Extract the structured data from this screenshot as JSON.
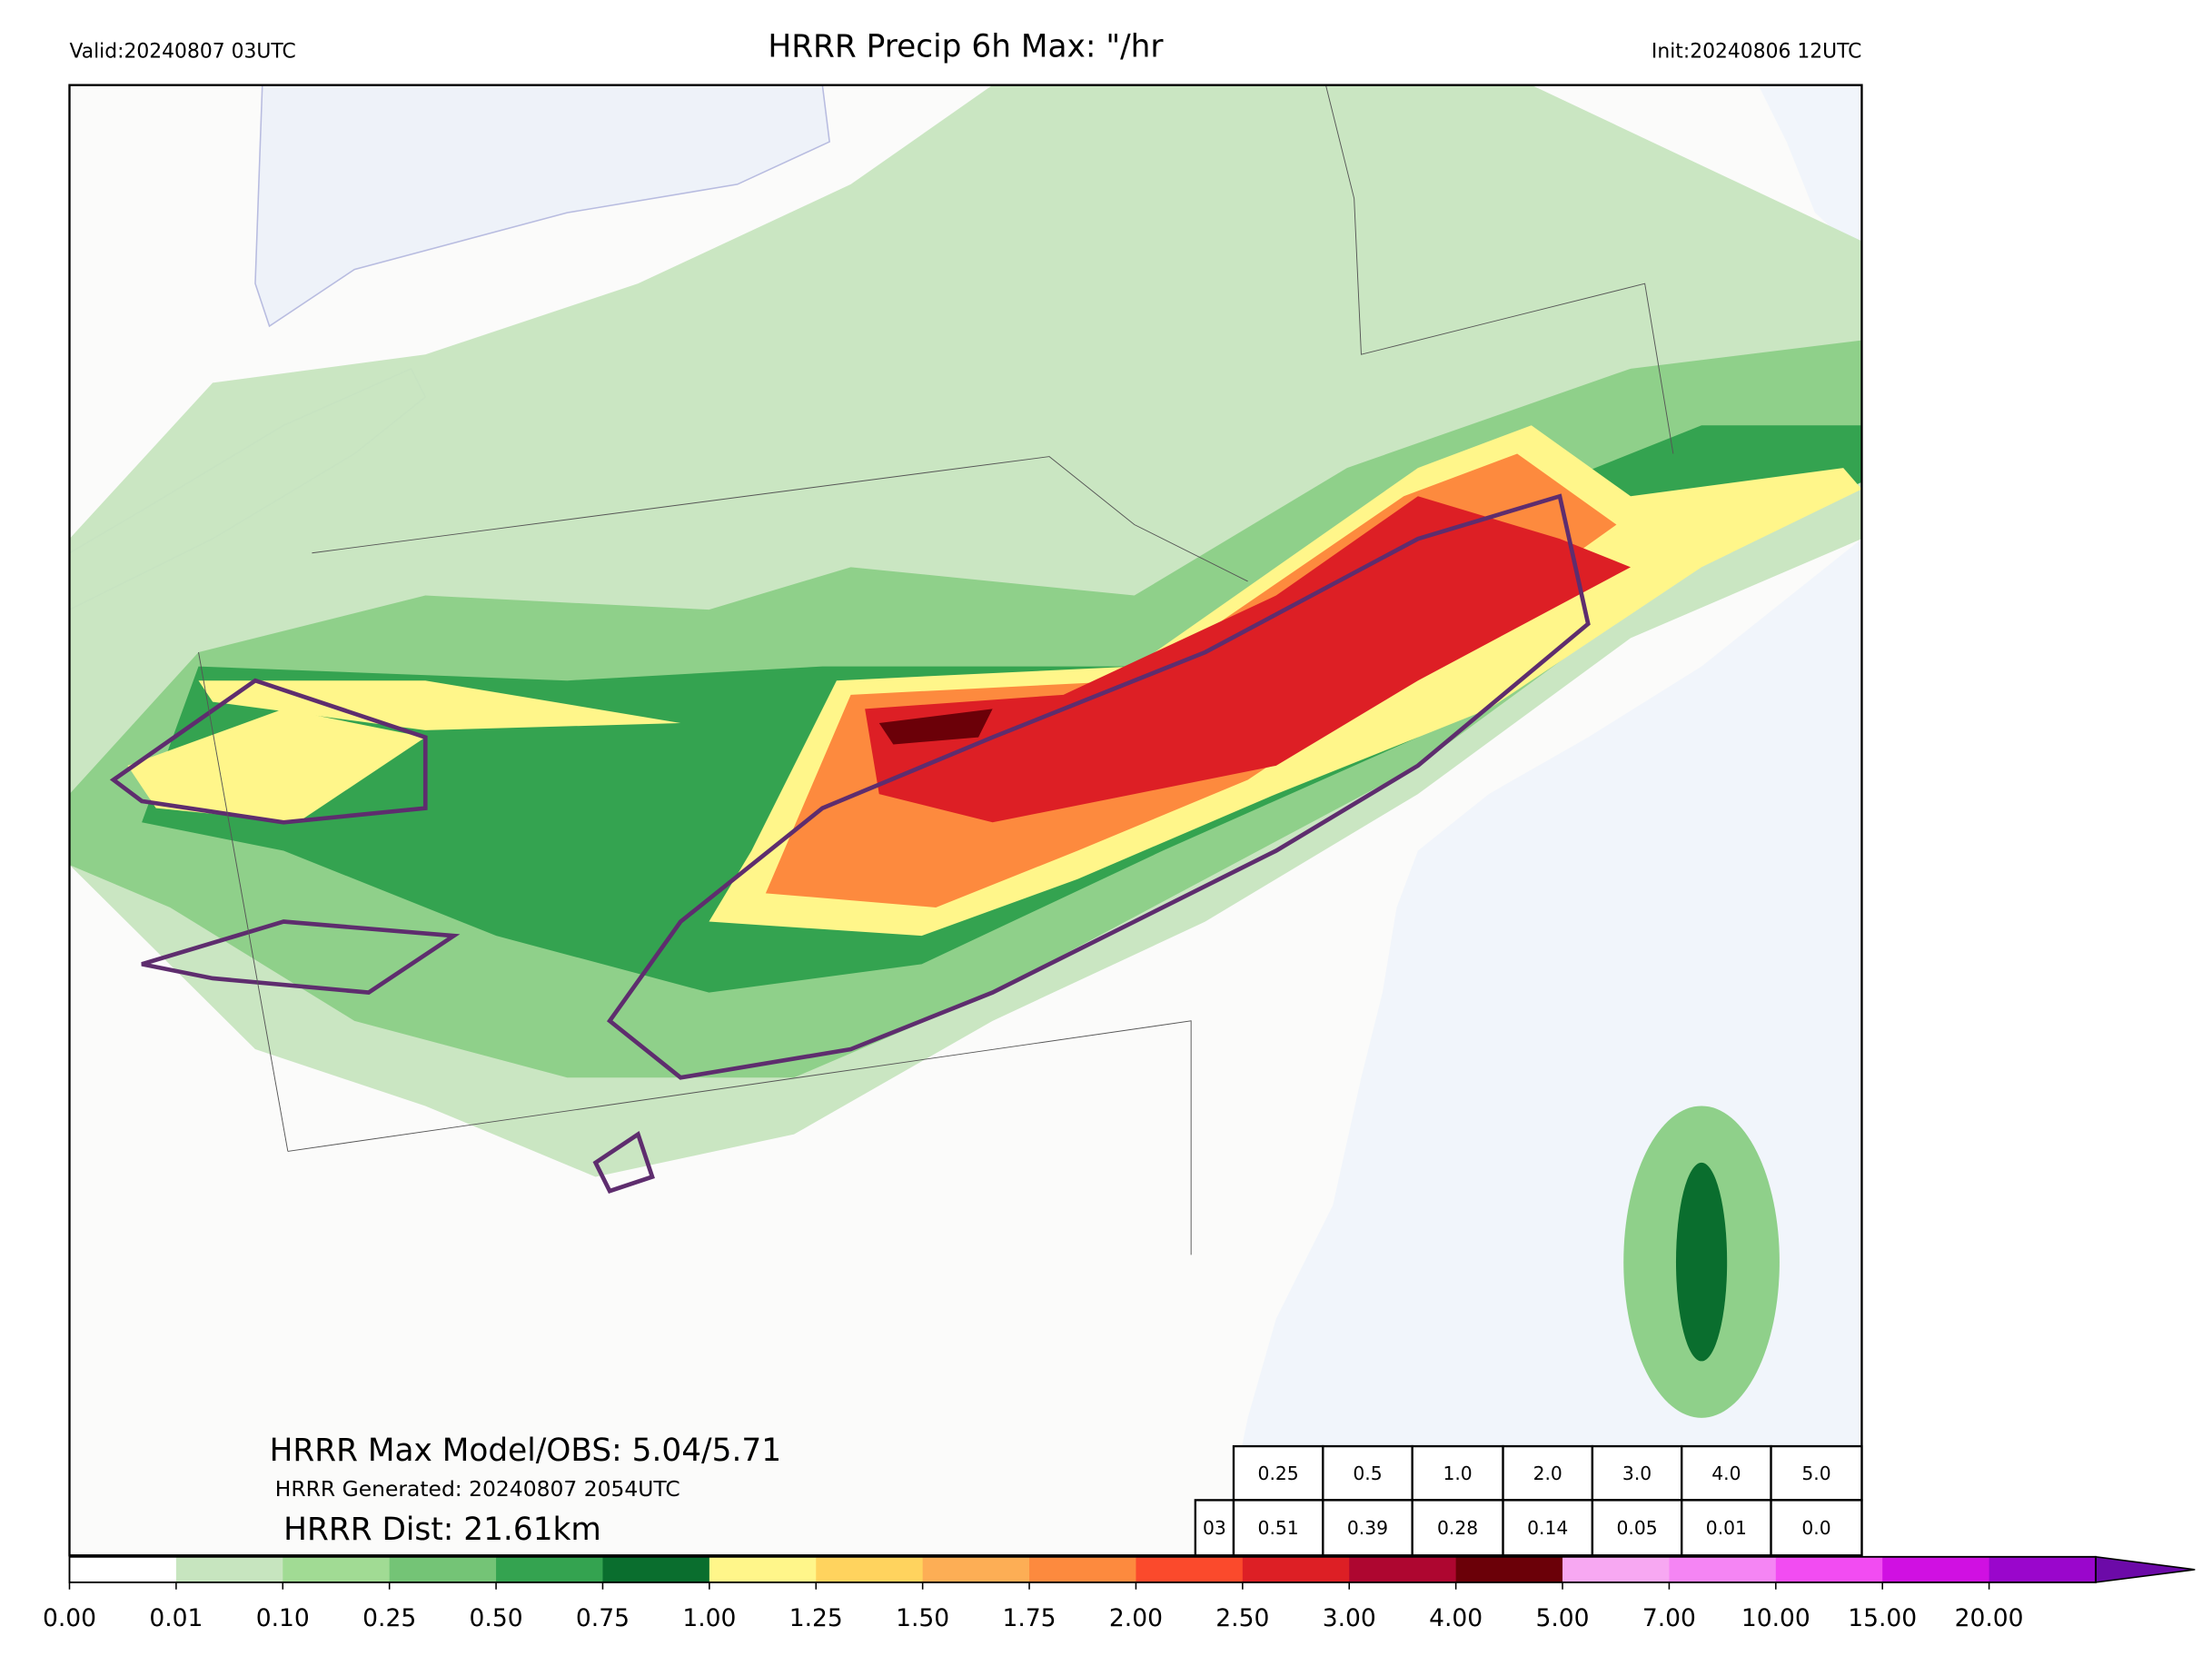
{
  "header": {
    "valid": "Valid:20240807 03UTC",
    "title": "HRRR Precip 6h Max: \"/hr",
    "init": "Init:20240806 12UTC"
  },
  "stats": {
    "max": "HRRR Max Model/OBS: 5.04/5.71",
    "generated": "HRRR Generated: 20240807 2054UTC",
    "dist": "HRRR Dist: 21.61km"
  },
  "table": {
    "rows": [
      [
        "0.25",
        "0.5",
        "1.0",
        "2.0",
        "3.0",
        "4.0",
        "5.0"
      ],
      [
        "03",
        "0.51",
        "0.39",
        "0.28",
        "0.14",
        "0.05",
        "0.01",
        "0.0"
      ]
    ]
  },
  "colorbar": {
    "ticks": [
      "0.00",
      "0.01",
      "0.10",
      "0.25",
      "0.50",
      "0.75",
      "1.00",
      "1.25",
      "1.50",
      "1.75",
      "2.00",
      "2.50",
      "3.00",
      "4.00",
      "5.00",
      "7.00",
      "10.00",
      "15.00",
      "20.00"
    ],
    "colors": [
      "#ffffff",
      "#c7e5bf",
      "#a1db94",
      "#74c476",
      "#34a350",
      "#0a6e2e",
      "#fff68a",
      "#ffd35e",
      "#fdae55",
      "#fd8a3e",
      "#fb4a2c",
      "#dd1f25",
      "#ae0630",
      "#6b0008",
      "#f7a8f2",
      "#f585f4",
      "#f24cf2",
      "#d010e2",
      "#9a06cc"
    ],
    "extend_color": "#6c0aa8"
  }
}
